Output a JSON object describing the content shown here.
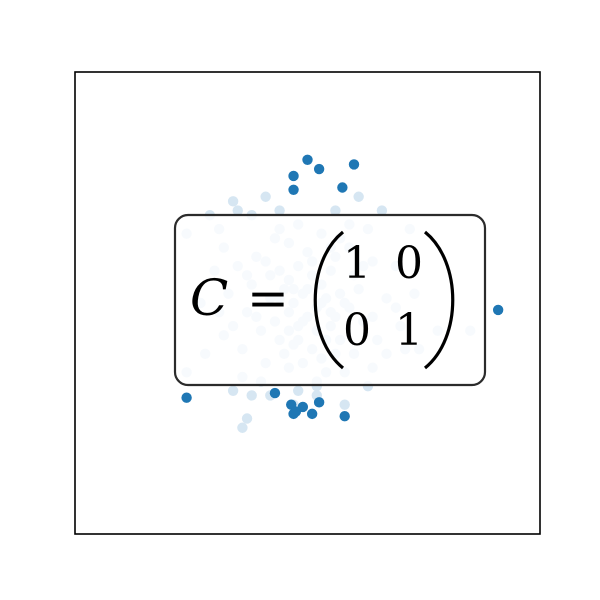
{
  "chart_data": {
    "type": "scatter",
    "title": "",
    "xlabel": "",
    "ylabel": "",
    "xlim": [
      -5,
      5
    ],
    "ylim": [
      -5,
      5
    ],
    "axes_ticks": false,
    "grid": false,
    "series": [
      {
        "role": "inside",
        "color": "#d6e6f2",
        "points": [
          [
            -0.9,
            0.9
          ],
          [
            -0.6,
            0.7
          ],
          [
            -0.4,
            0.5
          ],
          [
            -0.2,
            0.8
          ],
          [
            0.1,
            0.6
          ],
          [
            0.3,
            0.4
          ],
          [
            0.5,
            0.7
          ],
          [
            0.7,
            0.2
          ],
          [
            -0.8,
            0.1
          ],
          [
            -0.5,
            0.3
          ],
          [
            -0.3,
            0.0
          ],
          [
            -0.1,
            0.2
          ],
          [
            0.2,
            -0.1
          ],
          [
            0.4,
            0.1
          ],
          [
            0.6,
            -0.3
          ],
          [
            0.8,
            0.0
          ],
          [
            -0.7,
            -0.4
          ],
          [
            -0.4,
            -0.2
          ],
          [
            -0.2,
            -0.5
          ],
          [
            0.0,
            -0.3
          ],
          [
            0.2,
            -0.6
          ],
          [
            0.5,
            -0.5
          ],
          [
            0.7,
            -0.8
          ],
          [
            -0.6,
            -0.8
          ],
          [
            -0.3,
            -0.9
          ],
          [
            0.1,
            -1.0
          ],
          [
            0.3,
            -1.2
          ],
          [
            -1.0,
            -0.6
          ],
          [
            -1.2,
            0.4
          ],
          [
            1.1,
            0.3
          ],
          [
            1.2,
            -0.4
          ],
          [
            -1.3,
            -0.2
          ],
          [
            0.0,
            1.1
          ],
          [
            -0.4,
            1.3
          ],
          [
            0.3,
            1.5
          ],
          [
            0.9,
            1.2
          ],
          [
            -1.1,
            1.0
          ],
          [
            1.0,
            -1.1
          ],
          [
            -0.9,
            -1.3
          ],
          [
            0.6,
            1.0
          ],
          [
            -1.5,
            0.8
          ],
          [
            -1.4,
            -1.0
          ],
          [
            1.4,
            0.9
          ],
          [
            1.5,
            -0.8
          ],
          [
            -0.2,
            1.7
          ],
          [
            0.2,
            -1.7
          ],
          [
            -1.7,
            0.2
          ],
          [
            1.7,
            0.1
          ],
          [
            -1.9,
            1.6
          ],
          [
            -2.0,
            0.7
          ],
          [
            -2.3,
            0.0
          ],
          [
            -1.8,
            -0.7
          ],
          [
            -2.2,
            -1.1
          ],
          [
            -1.6,
            -1.9
          ],
          [
            -1.5,
            2.0
          ],
          [
            -2.1,
            1.9
          ],
          [
            -1.2,
            1.9
          ],
          [
            -0.6,
            2.0
          ],
          [
            0.6,
            2.0
          ],
          [
            0.9,
            1.7
          ],
          [
            1.3,
            1.6
          ],
          [
            1.6,
            2.0
          ],
          [
            2.2,
            1.6
          ],
          [
            1.9,
            0.8
          ],
          [
            1.3,
            -1.8
          ],
          [
            1.7,
            -1.1
          ],
          [
            2.0,
            -0.5
          ],
          [
            2.1,
            -1.0
          ],
          [
            2.4,
            -1.0
          ],
          [
            0.2,
            -1.8
          ],
          [
            -0.2,
            -1.9
          ],
          [
            -0.8,
            -2.0
          ],
          [
            -1.2,
            -2.0
          ],
          [
            -1.4,
            -1.6
          ],
          [
            -0.4,
            -1.4
          ],
          [
            0.4,
            -1.5
          ],
          [
            -0.1,
            -1.3
          ],
          [
            0.8,
            -1.5
          ],
          [
            1.4,
            -0.3
          ],
          [
            -1.6,
            -0.5
          ],
          [
            -2.6,
            1.5
          ],
          [
            1.1,
            2.3
          ],
          [
            -1.6,
            2.2
          ],
          [
            -0.9,
            2.3
          ],
          [
            -0.3,
            -2.2
          ],
          [
            0.8,
            -2.2
          ],
          [
            -1.4,
            -2.7
          ],
          [
            -1.3,
            -2.5
          ],
          [
            -2.6,
            -1.5
          ],
          [
            0.2,
            -2.0
          ],
          [
            1.9,
            -0.1
          ],
          [
            2.3,
            0.2
          ],
          [
            2.8,
            -0.6
          ],
          [
            3.5,
            -0.6
          ],
          [
            -0.6,
            0.1
          ],
          [
            -0.1,
            -0.4
          ],
          [
            0.4,
            -0.8
          ],
          [
            -0.7,
            1.4
          ],
          [
            0.5,
            -0.2
          ],
          [
            -1.8,
            1.2
          ],
          [
            -1.0,
            -1.7
          ],
          [
            0.7,
            1.4
          ],
          [
            1.0,
            0.6
          ],
          [
            -0.3,
            0.3
          ],
          [
            0.1,
            0.9
          ],
          [
            -0.5,
            -1.1
          ],
          [
            0.3,
            0.0
          ],
          [
            -0.2,
            -0.8
          ],
          [
            0.9,
            -0.1
          ],
          [
            -1.1,
            -0.3
          ],
          [
            1.2,
            0.8
          ],
          [
            -0.8,
            0.6
          ],
          [
            0.6,
            -1.1
          ],
          [
            -0.4,
            -0.6
          ],
          [
            0.0,
            0.3
          ],
          [
            -1.3,
            0.6
          ],
          [
            1.4,
            -1.4
          ],
          [
            -0.6,
            1.6
          ],
          [
            0.5,
            1.2
          ],
          [
            -1.9,
            -0.2
          ]
        ]
      },
      {
        "role": "outside",
        "color": "#1f77b4",
        "points": [
          [
            -0.3,
            2.75
          ],
          [
            0.0,
            3.1
          ],
          [
            0.25,
            2.9
          ],
          [
            0.75,
            2.5
          ],
          [
            1.0,
            3.0
          ],
          [
            -0.3,
            2.45
          ],
          [
            -2.6,
            -2.05
          ],
          [
            -0.7,
            -1.95
          ],
          [
            -0.35,
            -2.2
          ],
          [
            -0.1,
            -2.25
          ],
          [
            -0.25,
            -2.35
          ],
          [
            0.25,
            -2.15
          ],
          [
            -0.3,
            -2.4
          ],
          [
            0.1,
            -2.4
          ],
          [
            0.8,
            -2.45
          ],
          [
            4.1,
            -0.15
          ]
        ]
      }
    ],
    "annotation": {
      "lhs": "C",
      "equals": "=",
      "matrix": [
        [
          "1",
          "0"
        ],
        [
          "0",
          "1"
        ]
      ]
    }
  }
}
